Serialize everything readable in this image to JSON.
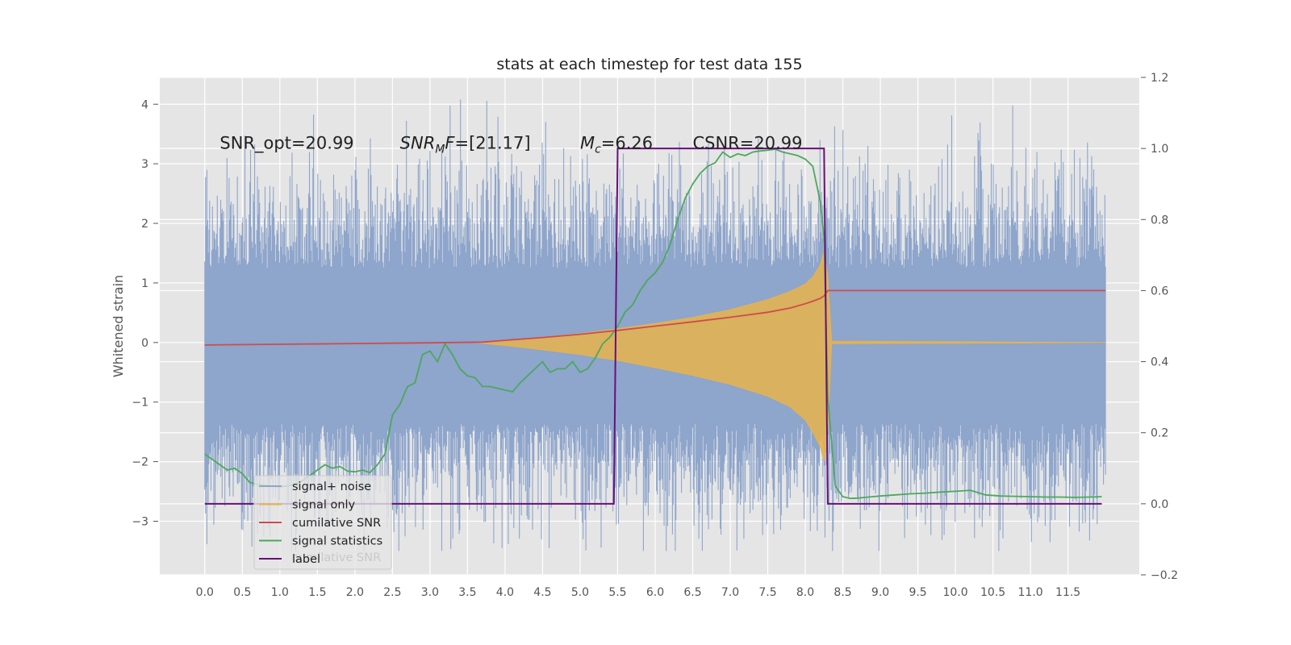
{
  "chart_data": {
    "type": "line",
    "title": "stats at each timestep for test data 155",
    "xlabel": "",
    "ylabel": "Whitened strain",
    "xlim": [
      -0.6,
      12.45
    ],
    "ylim": [
      -3.9,
      4.45
    ],
    "y2lim": [
      -0.2,
      1.2
    ],
    "x_ticks": [
      "0.0",
      "0.5",
      "1.0",
      "1.5",
      "2.0",
      "2.5",
      "3.0",
      "3.5",
      "4.0",
      "4.5",
      "5.0",
      "5.5",
      "6.0",
      "6.5",
      "7.0",
      "7.5",
      "8.0",
      "8.5",
      "9.0",
      "9.5",
      "10.0",
      "10.5",
      "11.0",
      "11.5"
    ],
    "y_ticks": [
      "4",
      "3",
      "2",
      "1",
      "0",
      "−1",
      "−2",
      "−3"
    ],
    "y2_ticks": [
      "1.2",
      "1.0",
      "0.8",
      "0.6",
      "0.4",
      "0.2",
      "0.0",
      "−0.2"
    ],
    "colors": {
      "noise": "#8ea5cc",
      "signal": "#e8b34a",
      "csnr": "#cc4d4d",
      "stats": "#4ca85c",
      "label": "#6a0f79",
      "background": "#e5e5e5",
      "grid": "#ffffff"
    },
    "annotations": [
      {
        "kind": "plain",
        "text": "SNR_opt=20.99",
        "x": 0.2,
        "y": 3.35
      },
      {
        "kind": "snrmf",
        "prefix": "SNR",
        "sub": "M",
        "suffix": "F=[21.17]",
        "x": 2.6,
        "y": 3.35
      },
      {
        "kind": "mc",
        "prefix": "M",
        "sub": "c",
        "suffix": "=6.26",
        "x": 5.0,
        "y": 3.35
      },
      {
        "kind": "plain",
        "text": "CSNR=20.99",
        "x": 6.5,
        "y": 3.35
      }
    ],
    "series": [
      {
        "name": "signal+ noise",
        "axis": "left",
        "kind": "noise",
        "x_range": [
          0,
          12.0
        ],
        "envelope_typical": [
          -1.9,
          1.6
        ],
        "extreme_max": 4.1,
        "extreme_min": -3.5
      },
      {
        "name": "signal only",
        "axis": "left",
        "kind": "envelope",
        "x": [
          3.6,
          4.0,
          4.5,
          5.0,
          5.5,
          6.0,
          6.5,
          7.0,
          7.5,
          7.8,
          8.0,
          8.1,
          8.2,
          8.25,
          8.3,
          8.35,
          12.0
        ],
        "upper": [
          0.0,
          0.04,
          0.09,
          0.15,
          0.23,
          0.32,
          0.42,
          0.55,
          0.72,
          0.86,
          0.98,
          1.1,
          1.3,
          1.55,
          1.1,
          0.02,
          0.0
        ],
        "lower": [
          0.0,
          -0.05,
          -0.12,
          -0.2,
          -0.3,
          -0.42,
          -0.55,
          -0.7,
          -0.9,
          -1.08,
          -1.3,
          -1.5,
          -1.75,
          -2.0,
          -1.5,
          -0.02,
          0.0
        ]
      },
      {
        "name": "cumilative SNR",
        "axis": "right",
        "x": [
          0,
          1.0,
          2.0,
          3.0,
          3.7,
          4.0,
          4.5,
          5.0,
          5.5,
          6.0,
          6.5,
          7.0,
          7.5,
          7.8,
          8.0,
          8.1,
          8.2,
          8.25,
          8.3,
          8.35,
          12.0
        ],
        "y": [
          0.447,
          0.449,
          0.451,
          0.453,
          0.455,
          0.46,
          0.468,
          0.477,
          0.488,
          0.5,
          0.512,
          0.525,
          0.539,
          0.551,
          0.563,
          0.57,
          0.578,
          0.585,
          0.6,
          0.6,
          0.6
        ]
      },
      {
        "name": "signal statistics",
        "axis": "right",
        "x": [
          0.0,
          0.1,
          0.2,
          0.3,
          0.4,
          0.5,
          0.6,
          0.7,
          0.8,
          0.9,
          1.0,
          1.1,
          1.2,
          1.3,
          1.4,
          1.5,
          1.6,
          1.7,
          1.8,
          1.9,
          2.0,
          2.1,
          2.2,
          2.3,
          2.4,
          2.5,
          2.6,
          2.7,
          2.8,
          2.9,
          3.0,
          3.1,
          3.2,
          3.3,
          3.4,
          3.5,
          3.6,
          3.7,
          3.8,
          3.9,
          4.0,
          4.1,
          4.2,
          4.3,
          4.4,
          4.5,
          4.6,
          4.7,
          4.8,
          4.9,
          5.0,
          5.1,
          5.2,
          5.3,
          5.4,
          5.5,
          5.6,
          5.7,
          5.8,
          5.9,
          6.0,
          6.1,
          6.2,
          6.3,
          6.4,
          6.5,
          6.6,
          6.7,
          6.8,
          6.9,
          7.0,
          7.1,
          7.2,
          7.3,
          7.4,
          7.5,
          7.6,
          7.7,
          7.8,
          7.9,
          8.0,
          8.1,
          8.2,
          8.25,
          8.3,
          8.4,
          8.5,
          8.6,
          8.7,
          8.8,
          8.9,
          9.0,
          9.2,
          9.4,
          9.6,
          9.8,
          10.0,
          10.2,
          10.4,
          10.6,
          10.8,
          11.0,
          11.2,
          11.4,
          11.6,
          11.8,
          11.95
        ],
        "y": [
          0.14,
          0.125,
          0.11,
          0.095,
          0.1,
          0.085,
          0.06,
          0.055,
          0.052,
          0.05,
          0.048,
          0.05,
          0.055,
          0.065,
          0.08,
          0.095,
          0.11,
          0.1,
          0.105,
          0.092,
          0.09,
          0.095,
          0.088,
          0.11,
          0.14,
          0.25,
          0.28,
          0.33,
          0.34,
          0.42,
          0.43,
          0.4,
          0.45,
          0.42,
          0.38,
          0.36,
          0.355,
          0.33,
          0.33,
          0.325,
          0.32,
          0.315,
          0.34,
          0.36,
          0.38,
          0.4,
          0.37,
          0.38,
          0.38,
          0.4,
          0.37,
          0.38,
          0.41,
          0.45,
          0.47,
          0.5,
          0.54,
          0.56,
          0.6,
          0.63,
          0.65,
          0.68,
          0.73,
          0.8,
          0.86,
          0.9,
          0.93,
          0.95,
          0.96,
          0.99,
          0.975,
          0.985,
          0.98,
          0.99,
          0.993,
          0.995,
          0.998,
          0.99,
          0.985,
          0.98,
          0.97,
          0.95,
          0.85,
          0.75,
          0.3,
          0.05,
          0.02,
          0.015,
          0.016,
          0.018,
          0.02,
          0.022,
          0.025,
          0.028,
          0.03,
          0.033,
          0.035,
          0.038,
          0.025,
          0.022,
          0.021,
          0.02,
          0.019,
          0.019,
          0.018,
          0.019,
          0.02
        ]
      },
      {
        "name": "label",
        "axis": "right",
        "x": [
          0.0,
          5.45,
          5.5,
          8.25,
          8.3,
          11.95
        ],
        "y": [
          0.0,
          0.0,
          1.0,
          1.0,
          0.0,
          0.0
        ]
      }
    ],
    "legend": {
      "location": "lower-left",
      "entries": [
        "signal+ noise",
        "signal only",
        "cumilative SNR",
        "signal statistics",
        "label"
      ],
      "ghost_text": "cumilative SNR"
    }
  }
}
